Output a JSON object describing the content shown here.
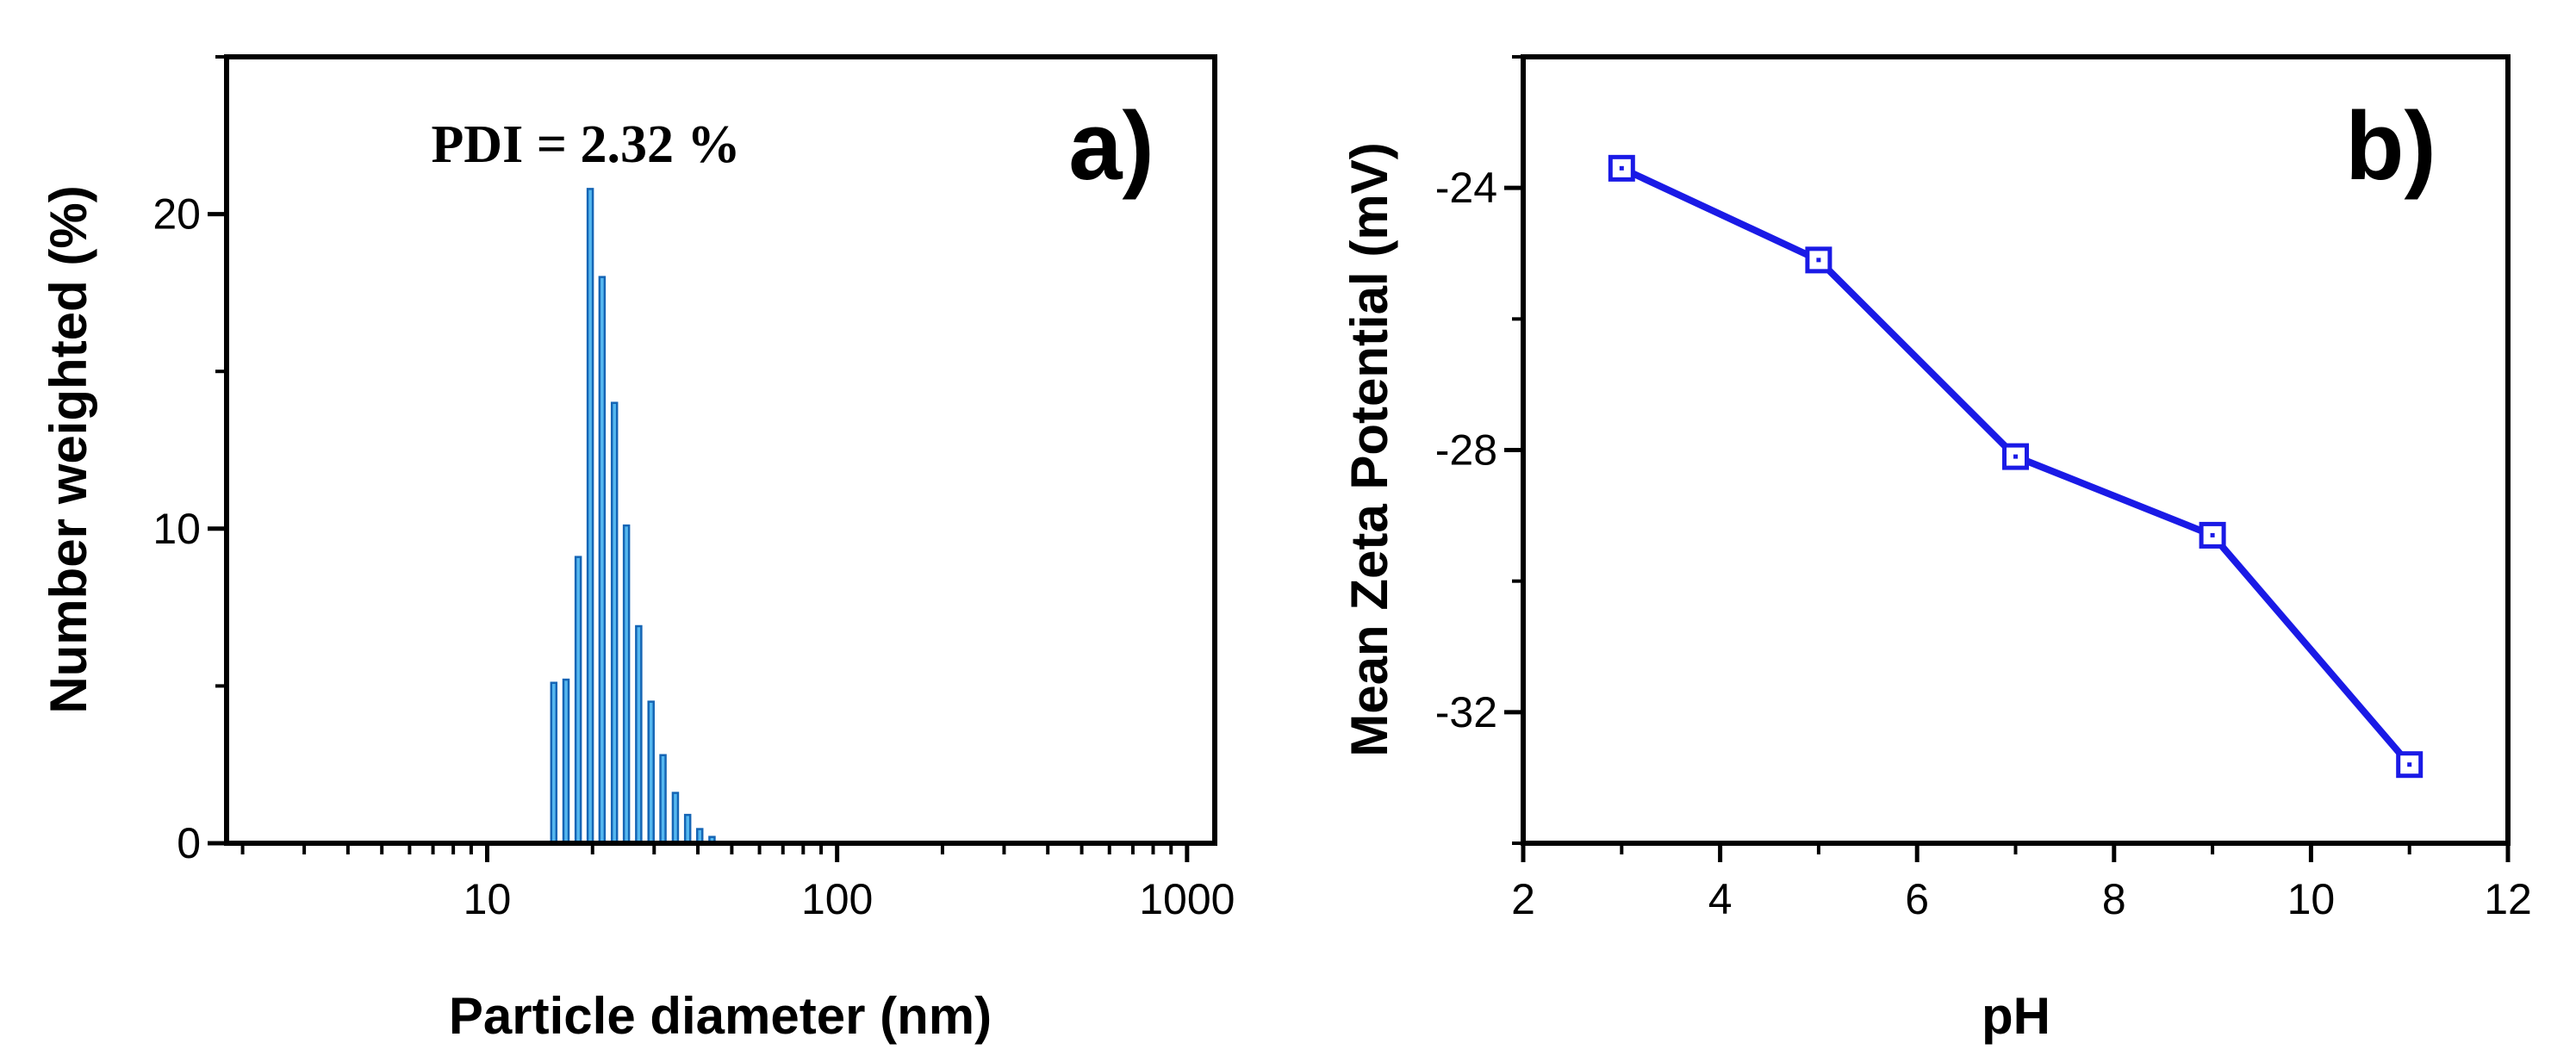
{
  "chart_data": [
    {
      "type": "bar",
      "panel_label": "a)",
      "annotation": "PDI = 2.32 %",
      "title": "",
      "xlabel": "Particle diameter (nm)",
      "ylabel": "Number weighted (%)",
      "xscale": "log",
      "xlim": [
        1.8,
        1200
      ],
      "ylim": [
        0,
        25
      ],
      "xticks": [
        10,
        100,
        1000
      ],
      "xtick_labels": [
        "10",
        "100",
        "1000"
      ],
      "yticks": [
        0,
        10,
        20
      ],
      "ytick_labels": [
        "0",
        "10",
        "20"
      ],
      "grid": false,
      "x": [
        15.5,
        16.8,
        18.2,
        19.7,
        21.3,
        23.1,
        25.0,
        27.1,
        29.4,
        31.8,
        34.5,
        37.4,
        40.5,
        43.9
      ],
      "values": [
        5.1,
        5.2,
        9.1,
        20.8,
        18.0,
        14.0,
        10.1,
        6.9,
        4.5,
        2.8,
        1.6,
        0.9,
        0.45,
        0.2
      ]
    },
    {
      "type": "line",
      "panel_label": "b)",
      "title": "",
      "xlabel": "pH",
      "ylabel": "Mean Zeta Potential (mV)",
      "xlim": [
        2,
        12
      ],
      "ylim": [
        -34,
        -22
      ],
      "xticks": [
        2,
        4,
        6,
        8,
        10,
        12
      ],
      "xtick_labels": [
        "2",
        "4",
        "6",
        "8",
        "10",
        "12"
      ],
      "yticks": [
        -24,
        -28,
        -32
      ],
      "ytick_labels": [
        "-24",
        "-28",
        "-32"
      ],
      "grid": false,
      "x": [
        3,
        5,
        7,
        9,
        11
      ],
      "values": [
        -23.7,
        -25.1,
        -28.1,
        -29.3,
        -32.8
      ],
      "color": "#1a1ae6",
      "marker": "open-square"
    }
  ]
}
